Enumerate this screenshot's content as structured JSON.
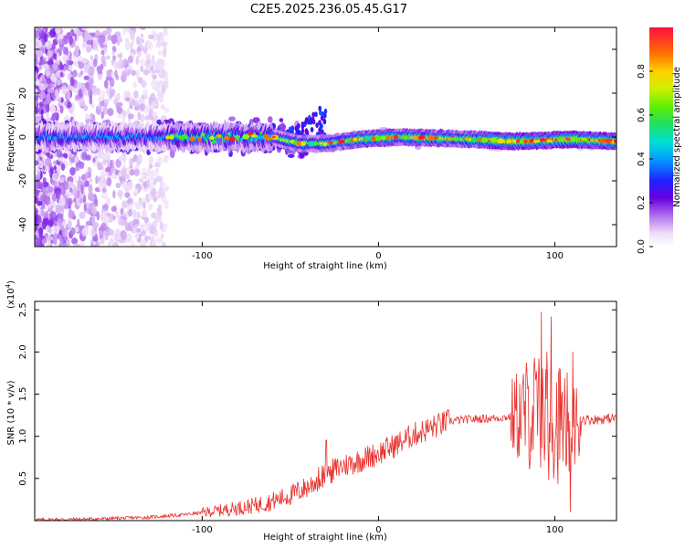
{
  "title": "C2E5.2025.236.05.45.G17",
  "chart_data": [
    {
      "type": "heatmap",
      "name": "spectrogram",
      "xlabel": "Height of straight line (km)",
      "ylabel": "Frequency (Hz)",
      "xlim": [
        -195,
        135
      ],
      "ylim": [
        -50,
        50
      ],
      "xticks": [
        -100,
        0,
        100
      ],
      "yticks": [
        -40,
        -20,
        0,
        20,
        40
      ],
      "colorbar": {
        "label": "Normalized spectral amplitude",
        "range": [
          0,
          1
        ],
        "ticks": [
          "0.0",
          "0.2",
          "0.4",
          "0.6",
          "0.8"
        ]
      },
      "ridge": {
        "description_points": [
          {
            "x": -195,
            "f": 0
          },
          {
            "x": -110,
            "f": 0
          },
          {
            "x": -60,
            "f": 0
          },
          {
            "x": -45,
            "f": -3
          },
          {
            "x": -30,
            "f": -3
          },
          {
            "x": -10,
            "f": -1
          },
          {
            "x": 10,
            "f": 0
          },
          {
            "x": 50,
            "f": -1
          },
          {
            "x": 80,
            "f": -2
          },
          {
            "x": 110,
            "f": -1
          },
          {
            "x": 135,
            "f": -2
          }
        ]
      }
    },
    {
      "type": "line",
      "name": "snr",
      "xlabel": "Height of straight line (km)",
      "ylabel": "SNR (10 * v/v)",
      "scale_label": "(x10",
      "scale_exp": "4",
      "scale_close": ")",
      "xlim": [
        -195,
        135
      ],
      "ylim": [
        0,
        2.6
      ],
      "xticks": [
        -100,
        0,
        100
      ],
      "yticks": [
        "0.5",
        "1.0",
        "1.5",
        "2.0",
        "2.5"
      ],
      "color": "#e8322d",
      "series": [
        {
          "name": "SNR",
          "x": [
            -195,
            -160,
            -130,
            -110,
            -90,
            -80,
            -70,
            -60,
            -50,
            -40,
            -30,
            -20,
            -10,
            0,
            10,
            20,
            30,
            40,
            50,
            60,
            70,
            80,
            85,
            90,
            95,
            100,
            105,
            110,
            115,
            120,
            125,
            135
          ],
          "values": [
            0.01,
            0.02,
            0.04,
            0.07,
            0.12,
            0.15,
            0.18,
            0.23,
            0.3,
            0.4,
            0.55,
            0.65,
            0.72,
            0.8,
            0.9,
            1.02,
            1.1,
            1.18,
            1.2,
            1.21,
            1.22,
            1.25,
            1.28,
            1.3,
            1.25,
            1.2,
            1.15,
            1.1,
            1.2,
            1.2,
            1.2,
            1.22
          ]
        }
      ]
    }
  ]
}
